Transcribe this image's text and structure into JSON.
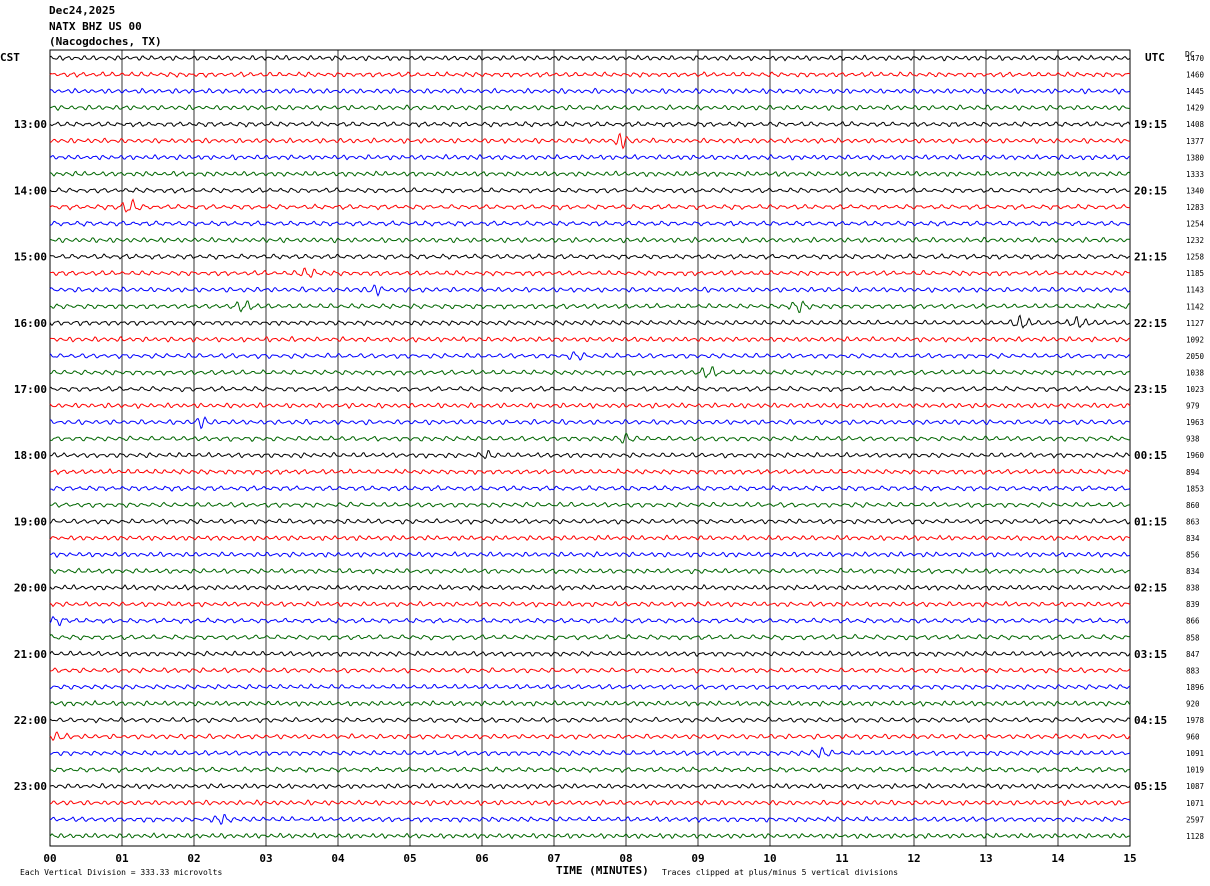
{
  "header": {
    "date": "Dec24,2025",
    "station": "NATX BHZ US 00",
    "location": "(Nacogdoches, TX)"
  },
  "labels": {
    "left_tz": "CST",
    "right_tz": "UTC",
    "dc": "DC"
  },
  "footer": {
    "scale_note": "Each Vertical Division =  333.33 microvolts",
    "xlabel": "TIME (MINUTES)",
    "clip_note": "Traces clipped at plus/minus 5 vertical divisions"
  },
  "chart_data": {
    "type": "line",
    "title": "",
    "xlabel": "TIME (MINUTES)",
    "xlim": [
      0,
      15
    ],
    "x_ticks": [
      "00",
      "01",
      "02",
      "03",
      "04",
      "05",
      "06",
      "07",
      "08",
      "09",
      "10",
      "11",
      "12",
      "13",
      "14",
      "15"
    ],
    "trace_colors": [
      "#000000",
      "#ff0000",
      "#0000ff",
      "#006600"
    ],
    "traces_per_hour": 4,
    "trace_count": 48,
    "left_hour_labels": [
      "13:00",
      "14:00",
      "15:00",
      "16:00",
      "17:00",
      "18:00",
      "19:00",
      "20:00",
      "21:00",
      "22:00",
      "23:00"
    ],
    "left_hour_label_trace_index": [
      4,
      8,
      12,
      16,
      20,
      24,
      28,
      32,
      36,
      40,
      44
    ],
    "right_hour_labels": [
      "19:15",
      "20:15",
      "21:15",
      "22:15",
      "23:15",
      "00:15",
      "01:15",
      "02:15",
      "03:15",
      "04:15",
      "05:15"
    ],
    "right_hour_label_trace_index": [
      4,
      8,
      12,
      16,
      20,
      24,
      28,
      32,
      36,
      40,
      44
    ],
    "dc_offsets": [
      "1470",
      "1460",
      "1445",
      "1429",
      "1408",
      "1377",
      "1380",
      "1333",
      "1340",
      "1283",
      "1254",
      "1232",
      "1258",
      "1185",
      "1143",
      "1142",
      "1127",
      "1092",
      "2050",
      "1038",
      "1023",
      "979",
      "1963",
      "938",
      "1960",
      "894",
      "1853",
      "860",
      "863",
      "834",
      "856",
      "834",
      "838",
      "839",
      "866",
      "858",
      "847",
      "883",
      "1896",
      "920",
      "1978",
      "960",
      "1091",
      "1019",
      "1087",
      "1071",
      "2597",
      "1128"
    ],
    "bursts": [
      {
        "trace": 5,
        "minute": 7.95,
        "amp": 6
      },
      {
        "trace": 9,
        "minute": 1.1,
        "amp": 6
      },
      {
        "trace": 13,
        "minute": 3.6,
        "amp": 4
      },
      {
        "trace": 14,
        "minute": 4.5,
        "amp": 4
      },
      {
        "trace": 15,
        "minute": 2.7,
        "amp": 5
      },
      {
        "trace": 15,
        "minute": 10.4,
        "amp": 5
      },
      {
        "trace": 16,
        "minute": 13.5,
        "amp": 6
      },
      {
        "trace": 16,
        "minute": 14.3,
        "amp": 5
      },
      {
        "trace": 18,
        "minute": 7.3,
        "amp": 3
      },
      {
        "trace": 19,
        "minute": 9.15,
        "amp": 5
      },
      {
        "trace": 22,
        "minute": 2.1,
        "amp": 4
      },
      {
        "trace": 23,
        "minute": 8.0,
        "amp": 4
      },
      {
        "trace": 24,
        "minute": 6.1,
        "amp": 3
      },
      {
        "trace": 34,
        "minute": 0.1,
        "amp": 3
      },
      {
        "trace": 41,
        "minute": 0.1,
        "amp": 3
      },
      {
        "trace": 42,
        "minute": 10.7,
        "amp": 4
      },
      {
        "trace": 46,
        "minute": 2.4,
        "amp": 4
      }
    ]
  }
}
